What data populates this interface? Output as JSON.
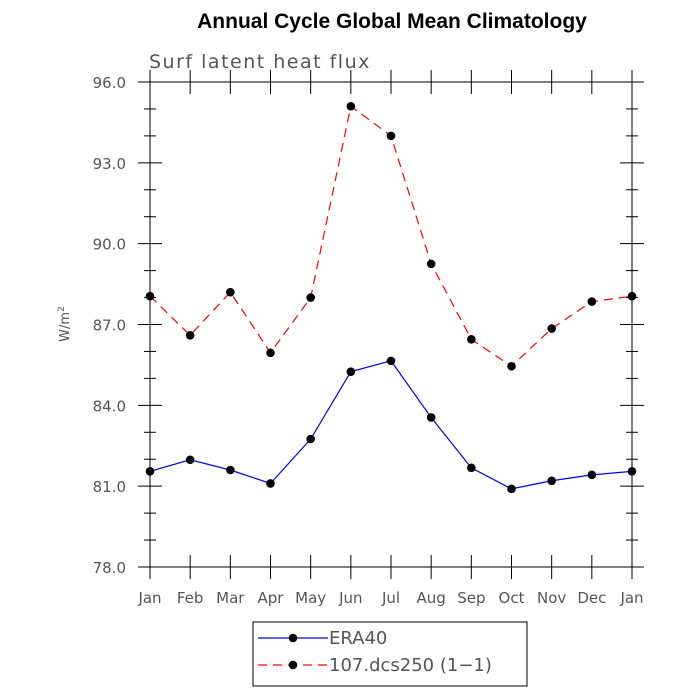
{
  "chart_data": {
    "type": "line",
    "title": "Annual Cycle Global Mean Climatology",
    "subtitle": "Surf latent heat flux",
    "ylabel": "W/m",
    "ylabel_sup": "2",
    "xlabel": "",
    "categories": [
      "Jan",
      "Feb",
      "Mar",
      "Apr",
      "May",
      "Jun",
      "Jul",
      "Aug",
      "Sep",
      "Oct",
      "Nov",
      "Dec",
      "Jan"
    ],
    "ylim": [
      78.0,
      96.0
    ],
    "yticks": [
      "78.0",
      "81.0",
      "84.0",
      "87.0",
      "90.0",
      "93.0",
      "96.0"
    ],
    "series": [
      {
        "name": "ERA40",
        "color": "#0000ff",
        "dash": "solid",
        "values": [
          81.55,
          81.98,
          81.6,
          81.1,
          82.75,
          85.25,
          85.65,
          83.55,
          81.68,
          80.9,
          81.2,
          81.42,
          81.55
        ]
      },
      {
        "name": "107.dcs250 (1−1)",
        "color": "#ff0000",
        "dash": "dashed",
        "values": [
          88.05,
          86.6,
          88.2,
          85.95,
          88.0,
          95.1,
          94.0,
          89.25,
          86.45,
          85.45,
          86.85,
          87.85,
          88.05
        ]
      }
    ],
    "legend_position": "bottom",
    "grid": false
  }
}
